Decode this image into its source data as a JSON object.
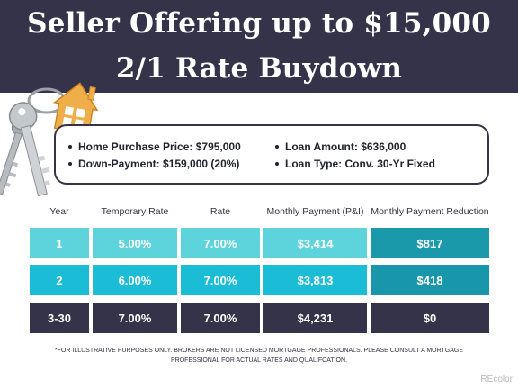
{
  "header": {
    "title_line1": "Seller Offering up to $15,000",
    "title_line2": "2/1 Rate Buydown"
  },
  "info": {
    "left": [
      "Home Purchase Price: $795,000",
      "Down-Payment: $159,000 (20%)"
    ],
    "right": [
      "Loan Amount: $636,000",
      "Loan Type: Conv. 30-Yr Fixed"
    ]
  },
  "table": {
    "headers": [
      "Year",
      "Temporary Rate",
      "Rate",
      "Monthly Payment (P&I)",
      "Monthly Payment Reduction"
    ],
    "rows": [
      [
        "1",
        "5.00%",
        "7.00%",
        "$3,414",
        "$817"
      ],
      [
        "2",
        "6.00%",
        "7.00%",
        "$3,813",
        "$418"
      ],
      [
        "3-30",
        "7.00%",
        "7.00%",
        "$4,231",
        "$0"
      ]
    ]
  },
  "colors": {
    "navy": "#34334a",
    "row1_light": "#5dd4dc",
    "row1_dark": "#1a99aa",
    "row2_light": "#1bbcd6",
    "row2_dark": "#1896ab",
    "row3": "#34334a",
    "house": "#f0ae4a"
  },
  "footer": {
    "line1": "*FOR ILLUSTRATIVE PURPOSES ONLY. BROKERS ARE NOT LICENSED MORTGAGE PROFESSIONALS. PLEASE CONSULT A MORTGAGE",
    "line2": "PROFESSIONAL FOR ACTUAL RATES AND QUALIFCATION."
  },
  "watermark": "REcolor"
}
